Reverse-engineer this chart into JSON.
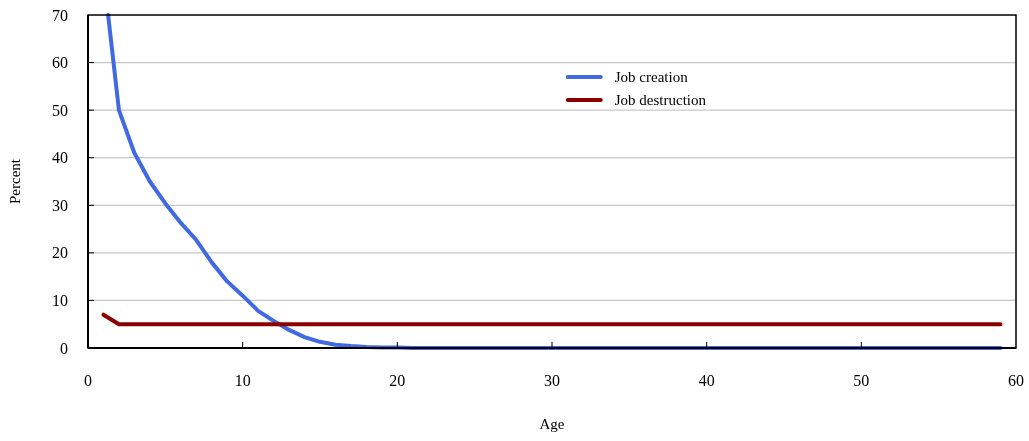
{
  "chart_data": {
    "type": "line",
    "xlabel": "Age",
    "ylabel": "Percent",
    "xlim": [
      0,
      60
    ],
    "xticks": [
      0,
      10,
      20,
      30,
      40,
      50,
      60
    ],
    "ylim": [
      0,
      70
    ],
    "yticks": [
      0,
      10,
      20,
      30,
      40,
      50,
      60,
      70
    ],
    "grid": "y",
    "legend": "top right",
    "line_style": "solid",
    "series": [
      {
        "name": "Job creation",
        "color": "#4169e1",
        "x": [
          1.3,
          2,
          3,
          4,
          5,
          6,
          7,
          8,
          9,
          10,
          11,
          12,
          13,
          14,
          15,
          16,
          17,
          18,
          19,
          20,
          21,
          22,
          23,
          24,
          25,
          26,
          27,
          28,
          29,
          30,
          31,
          32,
          33,
          34,
          35,
          36,
          37,
          38,
          39,
          40,
          41,
          42,
          43,
          44,
          45,
          46,
          47,
          48,
          49,
          50,
          51,
          52,
          53,
          54,
          55,
          56,
          57,
          58,
          59
        ],
        "values": [
          70,
          50,
          41,
          35,
          30.4,
          26.3,
          22.7,
          18,
          14,
          11,
          7.8,
          5.7,
          3.8,
          2.3,
          1.3,
          0.7,
          0.4,
          0.2,
          0.1,
          0.1,
          0,
          0,
          0,
          0,
          0,
          0,
          0,
          0,
          0,
          0,
          0,
          0,
          0,
          0,
          0,
          0,
          0,
          0,
          0,
          0,
          0,
          0,
          0,
          0,
          0,
          0,
          0,
          0,
          0,
          0,
          0,
          0,
          0,
          0,
          0,
          0,
          0,
          0,
          0
        ]
      },
      {
        "name": "Job destruction",
        "color": "#8b0000",
        "x": [
          1,
          2,
          3,
          4,
          5,
          6,
          7,
          8,
          9,
          10,
          11,
          12,
          13,
          14,
          15,
          16,
          17,
          18,
          19,
          20,
          21,
          22,
          23,
          24,
          25,
          26,
          27,
          28,
          29,
          30,
          31,
          32,
          33,
          34,
          35,
          36,
          37,
          38,
          39,
          40,
          41,
          42,
          43,
          44,
          45,
          46,
          47,
          48,
          49,
          50,
          51,
          52,
          53,
          54,
          55,
          56,
          57,
          58,
          59
        ],
        "values": [
          7,
          5,
          5,
          5,
          5,
          5,
          5,
          5,
          5,
          5,
          5,
          5,
          5,
          5,
          5,
          5,
          5,
          5,
          5,
          5,
          5,
          5,
          5,
          5,
          5,
          5,
          5,
          5,
          5,
          5,
          5,
          5,
          5,
          5,
          5,
          5,
          5,
          5,
          5,
          5,
          5,
          5,
          5,
          5,
          5,
          5,
          5,
          5,
          5,
          5,
          5,
          5,
          5,
          5,
          5,
          5,
          5,
          5,
          5
        ]
      }
    ]
  }
}
